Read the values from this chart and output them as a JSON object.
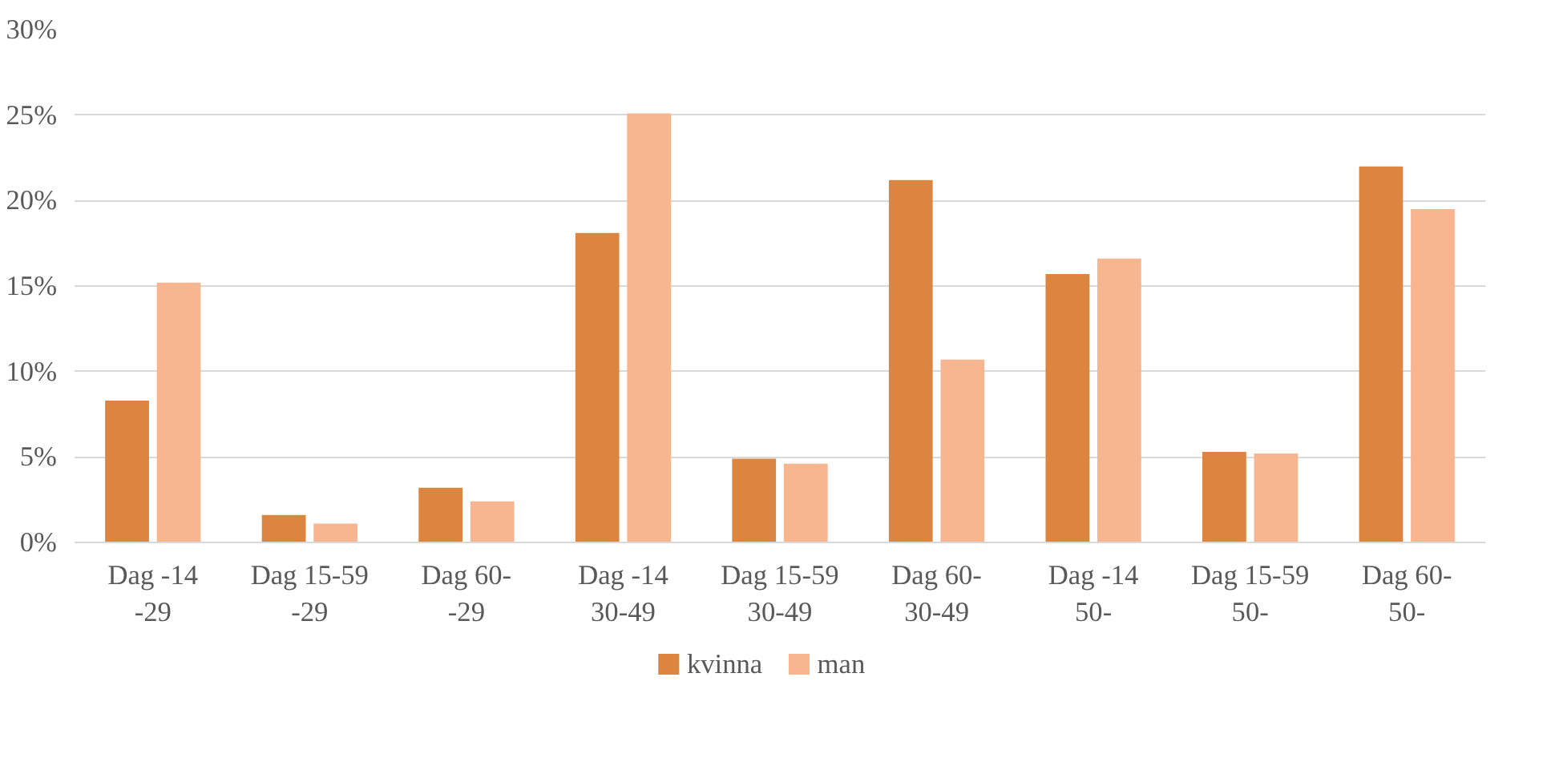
{
  "chart_data": {
    "type": "bar",
    "categories": [
      "Dag -14\n-29",
      "Dag 15-59\n-29",
      "Dag 60-\n-29",
      "Dag -14\n30-49",
      "Dag 15-59\n30-49",
      "Dag 60-\n30-49",
      "Dag -14\n50-",
      "Dag 15-59\n50-",
      "Dag 60-\n50-"
    ],
    "series": [
      {
        "name": "kvinna",
        "color": "#dc8540",
        "values": [
          8.3,
          1.6,
          3.2,
          18.1,
          4.9,
          21.2,
          15.7,
          5.3,
          22.0
        ]
      },
      {
        "name": "man",
        "color": "#f8b690",
        "values": [
          15.2,
          1.1,
          2.4,
          25.1,
          4.6,
          10.7,
          16.6,
          5.2,
          19.5
        ]
      }
    ],
    "ylim": [
      0,
      30
    ],
    "yticks": [
      {
        "value": 0,
        "label": "0%"
      },
      {
        "value": 5,
        "label": "5%"
      },
      {
        "value": 10,
        "label": "10%"
      },
      {
        "value": 15,
        "label": "15%"
      },
      {
        "value": 20,
        "label": "20%"
      },
      {
        "value": 25,
        "label": "25%"
      },
      {
        "value": 30,
        "label": "30%"
      }
    ],
    "grid": "y",
    "legend": "bottom"
  }
}
